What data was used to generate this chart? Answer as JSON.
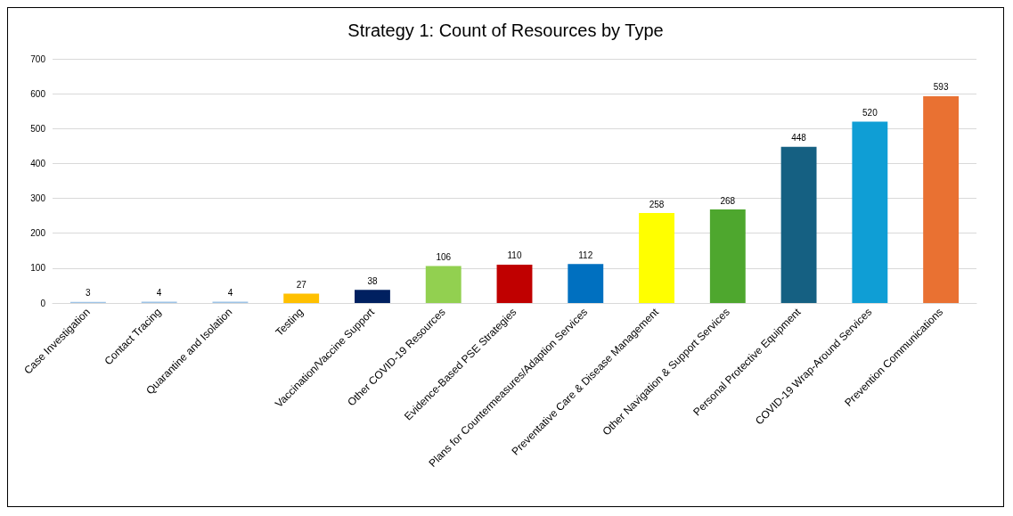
{
  "chart_data": {
    "type": "bar",
    "title": "Strategy 1: Count of Resources by Type",
    "categories": [
      "Case Investigation",
      "Contact Tracing",
      "Quarantine and Isolation",
      "Testing",
      "Vaccination/Vaccine Support",
      "Other COVID-19 Resources",
      "Evidence-Based PSE Strategies",
      "Plans for Countermeasures/Adaption Services",
      "Preventative Care & Disease Management",
      "Other Navigation & Support Services",
      "Personal Protective Equipment",
      "COVID-19 Wrap-Around Services",
      "Prevention Communications"
    ],
    "values": [
      3,
      4,
      4,
      27,
      38,
      106,
      110,
      112,
      258,
      268,
      448,
      520,
      593
    ],
    "colors": [
      "#9dc3e6",
      "#9dc3e6",
      "#9dc3e6",
      "#ffc000",
      "#002060",
      "#92d050",
      "#c00000",
      "#0070c0",
      "#ffff00",
      "#4ea72e",
      "#156082",
      "#0f9ed5",
      "#e97132"
    ],
    "ylim": [
      0,
      700
    ],
    "yticks": [
      0,
      100,
      200,
      300,
      400,
      500,
      600,
      700
    ],
    "grid": true,
    "data_labels": true
  }
}
